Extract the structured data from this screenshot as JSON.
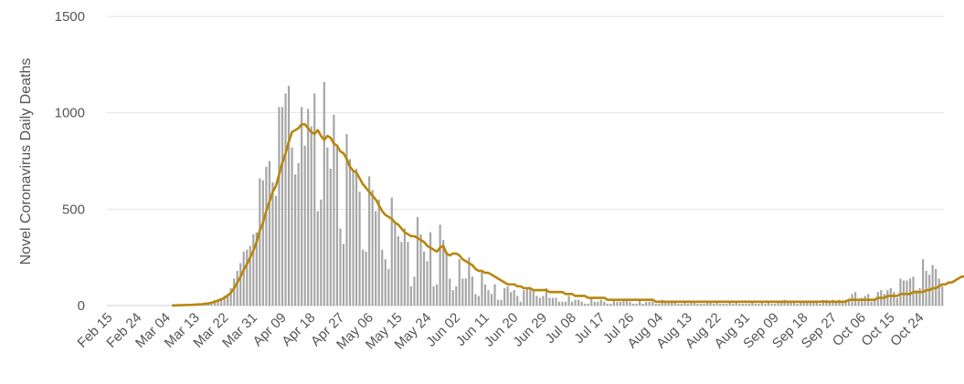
{
  "chart_data": {
    "type": "bar",
    "title": "",
    "ylabel": "Novel Coronavirus Daily Deaths",
    "xlabel": "",
    "ylim": [
      0,
      1500
    ],
    "yticks": [
      0,
      500,
      1000,
      1500
    ],
    "grid": "horizontal",
    "legend": "none",
    "x_tick_labels": [
      "Feb 15",
      "Feb 24",
      "Mar 04",
      "Mar 13",
      "Mar 22",
      "Mar 31",
      "Apr 09",
      "Apr 18",
      "Apr 27",
      "May 06",
      "May 15",
      "May 24",
      "Jun 02",
      "Jun 11",
      "Jun 20",
      "Jun 29",
      "Jul 08",
      "Jul 17",
      "Jul 26",
      "Aug 04",
      "Aug 13",
      "Aug 22",
      "Aug 31",
      "Sep 09",
      "Sep 18",
      "Sep 27",
      "Oct 06",
      "Oct 15",
      "Oct 24"
    ],
    "x_tick_every_days": 9,
    "series": [
      {
        "type": "bar",
        "color": "#a6a6a6",
        "values": [
          0,
          0,
          0,
          0,
          0,
          0,
          0,
          0,
          0,
          0,
          0,
          0,
          0,
          0,
          0,
          0,
          0,
          0,
          0,
          0,
          1,
          1,
          2,
          3,
          3,
          4,
          5,
          6,
          7,
          8,
          10,
          14,
          20,
          28,
          34,
          40,
          52,
          60,
          90,
          140,
          180,
          220,
          280,
          290,
          310,
          370,
          380,
          660,
          650,
          720,
          750,
          640,
          570,
          1030,
          1030,
          1100,
          1140,
          820,
          680,
          740,
          1030,
          830,
          1020,
          930,
          1100,
          490,
          550,
          1160,
          820,
          710,
          990,
          830,
          400,
          320,
          890,
          760,
          700,
          710,
          590,
          290,
          280,
          670,
          600,
          490,
          550,
          290,
          240,
          190,
          560,
          430,
          360,
          330,
          400,
          330,
          100,
          150,
          460,
          370,
          280,
          230,
          380,
          100,
          110,
          420,
          340,
          280,
          140,
          80,
          100,
          240,
          140,
          140,
          250,
          150,
          60,
          50,
          180,
          110,
          80,
          60,
          110,
          30,
          30,
          90,
          100,
          70,
          80,
          50,
          20,
          80,
          90,
          90,
          80,
          50,
          40,
          50,
          90,
          40,
          40,
          40,
          20,
          20,
          20,
          50,
          20,
          30,
          30,
          20,
          10,
          10,
          40,
          20,
          20,
          30,
          20,
          10,
          10,
          30,
          20,
          20,
          30,
          30,
          20,
          10,
          10,
          30,
          10,
          20,
          20,
          20,
          10,
          10,
          30,
          20,
          20,
          20,
          20,
          10,
          10,
          20,
          10,
          20,
          20,
          10,
          10,
          10,
          20,
          20,
          10,
          20,
          10,
          10,
          10,
          20,
          10,
          20,
          10,
          10,
          10,
          10,
          20,
          10,
          10,
          20,
          10,
          20,
          10,
          10,
          20,
          20,
          30,
          20,
          20,
          20,
          10,
          20,
          20,
          20,
          20,
          20,
          20,
          10,
          30,
          30,
          20,
          30,
          20,
          30,
          20,
          30,
          30,
          60,
          70,
          30,
          40,
          50,
          60,
          20,
          30,
          70,
          80,
          60,
          80,
          90,
          70,
          40,
          140,
          130,
          130,
          140,
          150,
          80,
          90,
          240,
          180,
          160,
          210,
          190,
          140,
          100
        ]
      },
      {
        "type": "line",
        "color": "#b8860b",
        "values": [
          0,
          0,
          0,
          0,
          0,
          0,
          0,
          0,
          0,
          0,
          0,
          0,
          0,
          0,
          0,
          0,
          0,
          0,
          0,
          0,
          1,
          1,
          2,
          2,
          3,
          3,
          4,
          5,
          6,
          7,
          9,
          11,
          15,
          20,
          25,
          32,
          40,
          52,
          66,
          90,
          120,
          150,
          185,
          215,
          250,
          285,
          330,
          390,
          430,
          490,
          540,
          590,
          620,
          680,
          740,
          790,
          850,
          900,
          910,
          920,
          940,
          940,
          920,
          900,
          890,
          910,
          880,
          860,
          880,
          870,
          840,
          830,
          800,
          790,
          760,
          720,
          700,
          690,
          660,
          630,
          610,
          590,
          570,
          550,
          520,
          490,
          470,
          460,
          450,
          430,
          420,
          400,
          380,
          370,
          360,
          360,
          350,
          340,
          330,
          310,
          300,
          290,
          280,
          300,
          310,
          270,
          260,
          270,
          270,
          260,
          240,
          230,
          220,
          210,
          190,
          180,
          180,
          170,
          170,
          160,
          150,
          140,
          130,
          120,
          110,
          110,
          110,
          100,
          100,
          90,
          90,
          90,
          80,
          80,
          80,
          80,
          80,
          70,
          70,
          70,
          70,
          70,
          60,
          60,
          60,
          50,
          50,
          50,
          50,
          40,
          40,
          40,
          40,
          40,
          40,
          30,
          30,
          30,
          30,
          30,
          30,
          30,
          30,
          30,
          30,
          30,
          30,
          30,
          30,
          30,
          20,
          20,
          20,
          20,
          20,
          20,
          20,
          20,
          20,
          20,
          20,
          20,
          20,
          20,
          20,
          20,
          20,
          20,
          20,
          20,
          20,
          20,
          20,
          20,
          20,
          20,
          20,
          20,
          20,
          20,
          20,
          20,
          20,
          20,
          20,
          20,
          20,
          20,
          20,
          20,
          20,
          20,
          20,
          20,
          20,
          20,
          20,
          20,
          20,
          20,
          20,
          20,
          20,
          20,
          20,
          20,
          20,
          20,
          20,
          20,
          30,
          30,
          30,
          30,
          30,
          30,
          30,
          30,
          30,
          40,
          40,
          40,
          50,
          50,
          50,
          50,
          60,
          60,
          60,
          60,
          70,
          70,
          70,
          70,
          80,
          80,
          90,
          90,
          100,
          110,
          110,
          120,
          120,
          130,
          140,
          150,
          150,
          160,
          170,
          180,
          190,
          190
        ]
      }
    ]
  }
}
